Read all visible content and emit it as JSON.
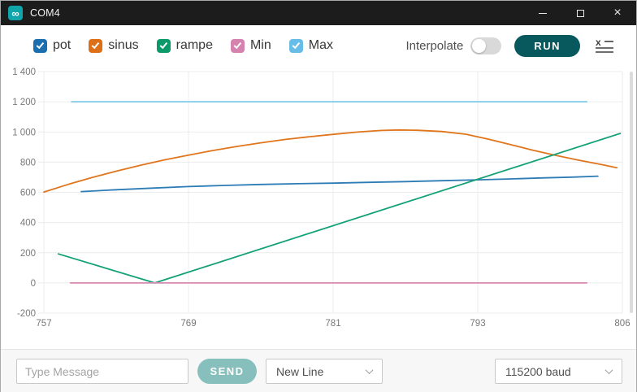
{
  "window": {
    "title": "COM4"
  },
  "icons": {
    "app_glyph": "∞",
    "close_glyph": "×",
    "app": "arduino-infinity-icon",
    "toolbar_right": "x-list-icon",
    "selects": "chevron-down-icon"
  },
  "toolbar": {
    "series_toggles": [
      {
        "label": "pot",
        "checked": true,
        "color": "#1b6fae"
      },
      {
        "label": "sinus",
        "checked": true,
        "color": "#dd7016"
      },
      {
        "label": "rampe",
        "checked": true,
        "color": "#0d9a6b"
      },
      {
        "label": "Min",
        "checked": true,
        "color": "#d583ae"
      },
      {
        "label": "Max",
        "checked": true,
        "color": "#67bde8"
      }
    ],
    "interpolate_label": "Interpolate",
    "interpolate_enabled": false,
    "run_label": "RUN",
    "run_color": "#07595e"
  },
  "chart_data": {
    "type": "line",
    "title": "",
    "xlabel": "",
    "ylabel": "",
    "grid": true,
    "legend_position": "toolbar-top",
    "xlim": [
      757,
      806
    ],
    "ylim": [
      -200,
      1400
    ],
    "xticks": [
      757,
      769,
      781,
      793,
      806
    ],
    "xtick_labels": [
      "757",
      "769",
      "781",
      "793",
      "806"
    ],
    "yticks": [
      -200,
      0,
      200,
      400,
      600,
      800,
      1000,
      1200,
      1400
    ],
    "ytick_labels": [
      "-200",
      "0",
      "200",
      "400",
      "600",
      "800",
      "1 000",
      "1 200",
      "1 400"
    ],
    "series": [
      {
        "name": "pot",
        "color": "#2d7cb5",
        "points": [
          [
            760.1,
            605
          ],
          [
            763,
            617
          ],
          [
            766,
            628
          ],
          [
            769,
            638
          ],
          [
            772,
            646
          ],
          [
            775,
            652
          ],
          [
            778,
            657
          ],
          [
            781,
            661
          ],
          [
            784,
            666
          ],
          [
            787,
            671
          ],
          [
            790,
            677
          ],
          [
            793,
            683
          ],
          [
            796,
            689
          ],
          [
            799,
            696
          ],
          [
            801.5,
            701
          ],
          [
            803.8,
            707
          ]
        ]
      },
      {
        "name": "sinus",
        "color": "#e0751c",
        "points": [
          [
            757,
            602
          ],
          [
            759,
            652
          ],
          [
            761,
            698
          ],
          [
            763,
            740
          ],
          [
            765,
            779
          ],
          [
            767,
            815
          ],
          [
            769,
            847
          ],
          [
            771,
            877
          ],
          [
            773,
            904
          ],
          [
            775,
            928
          ],
          [
            777,
            950
          ],
          [
            779,
            968
          ],
          [
            781,
            984
          ],
          [
            783,
            999
          ],
          [
            785,
            1010
          ],
          [
            786.5,
            1013
          ],
          [
            788,
            1011
          ],
          [
            790,
            1003
          ],
          [
            792,
            985
          ],
          [
            794,
            952
          ],
          [
            796,
            915
          ],
          [
            798,
            878
          ],
          [
            800,
            845
          ],
          [
            802,
            814
          ],
          [
            804,
            786
          ],
          [
            805.5,
            763
          ]
        ]
      },
      {
        "name": "rampe",
        "color": "#13a177",
        "points": [
          [
            758.2,
            192
          ],
          [
            766.2,
            0
          ],
          [
            805.8,
            990
          ]
        ]
      },
      {
        "name": "Min",
        "color": "#d78ab4",
        "points": [
          [
            759.2,
            0
          ],
          [
            802.8,
            0
          ]
        ]
      },
      {
        "name": "Max",
        "color": "#7fc9e8",
        "points": [
          [
            759.3,
            1200
          ],
          [
            802.8,
            1200
          ]
        ]
      }
    ]
  },
  "bottom_bar": {
    "message_placeholder": "Type Message",
    "send_label": "SEND",
    "line_ending_selected": "New Line",
    "baud_rate_selected": "115200 baud"
  }
}
